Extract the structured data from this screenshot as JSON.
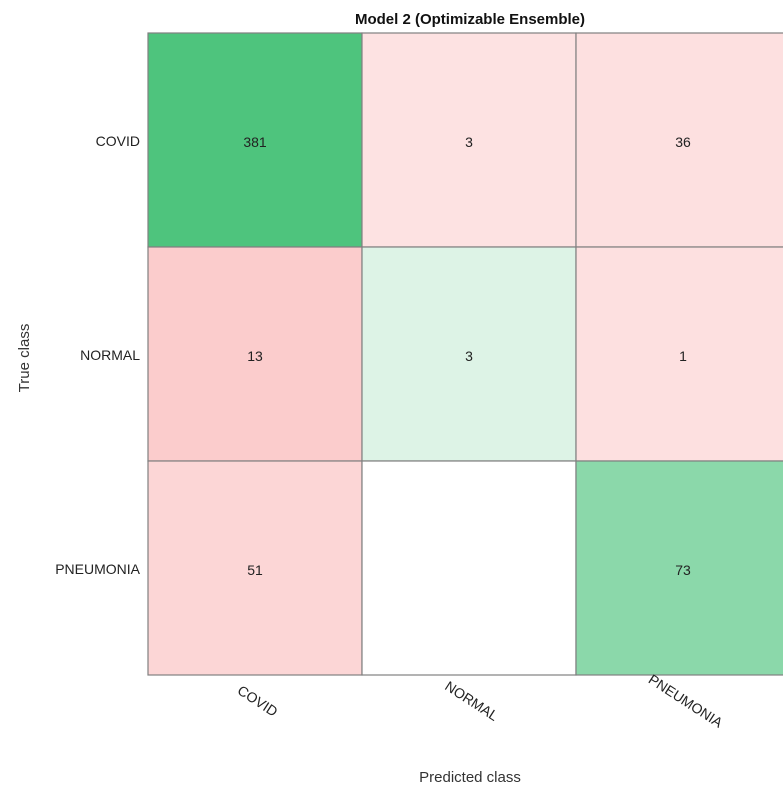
{
  "chart_data": {
    "type": "heatmap",
    "title": "Model 2 (Optimizable Ensemble)",
    "xlabel": "Predicted class",
    "ylabel": "True class",
    "classes": [
      "COVID",
      "NORMAL",
      "PNEUMONIA"
    ],
    "x_categories": [
      "COVID",
      "NORMAL",
      "PNEUMONIA"
    ],
    "y_categories": [
      "COVID",
      "NORMAL",
      "PNEUMONIA"
    ],
    "matrix": [
      [
        381,
        3,
        36
      ],
      [
        13,
        3,
        1
      ],
      [
        51,
        null,
        73
      ]
    ],
    "colors": {
      "correct_high": "#4ec47d",
      "correct_low": "#e2f5ea",
      "wrong_high": "#fbcccc",
      "wrong_low": "#fde2e2",
      "empty": "#ffffff",
      "grid_line": "#808080"
    }
  }
}
